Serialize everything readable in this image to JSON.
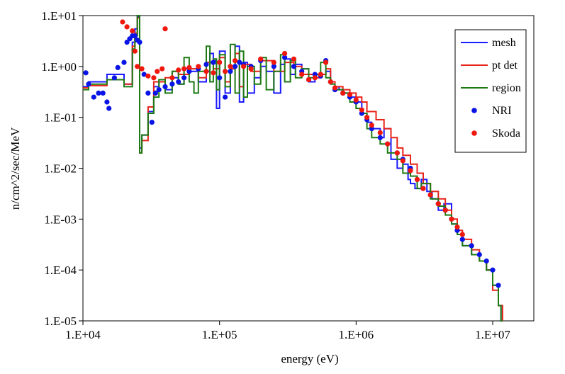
{
  "chart_data": {
    "type": "line",
    "title": "",
    "xlabel": "energy (eV)",
    "ylabel": "n/cm^2/sec/MeV",
    "xscale": "log",
    "yscale": "log",
    "xlim": [
      10000,
      20000000
    ],
    "ylim": [
      1e-05,
      10
    ],
    "x_ticks": [
      {
        "value": 10000,
        "label": "1.E+04"
      },
      {
        "value": 100000,
        "label": "1.E+05"
      },
      {
        "value": 1000000,
        "label": "1.E+06"
      },
      {
        "value": 10000000,
        "label": "1.E+07"
      }
    ],
    "y_ticks": [
      {
        "value": 10,
        "label": "1.E+01"
      },
      {
        "value": 1,
        "label": "1.E+00"
      },
      {
        "value": 0.1,
        "label": "1.E-01"
      },
      {
        "value": 0.01,
        "label": "1.E-02"
      },
      {
        "value": 0.001,
        "label": "1.E-03"
      },
      {
        "value": 0.0001,
        "label": "1.E-04"
      },
      {
        "value": 1e-05,
        "label": "1.E-05"
      }
    ],
    "legend_position": "top-right",
    "series": [
      {
        "name": "mesh",
        "style": "step",
        "color": "#1a1aff",
        "x": [
          10000,
          11000,
          15000,
          20000,
          23000,
          24000,
          25000,
          26000,
          27000,
          30000,
          33000,
          36000,
          40000,
          45000,
          50000,
          55000,
          60000,
          70000,
          80000,
          85000,
          90000,
          95000,
          100000,
          110000,
          120000,
          130000,
          140000,
          150000,
          160000,
          180000,
          200000,
          220000,
          250000,
          280000,
          300000,
          330000,
          360000,
          400000,
          450000,
          500000,
          550000,
          600000,
          650000,
          700000,
          750000,
          800000,
          900000,
          1000000,
          1100000,
          1200000,
          1300000,
          1500000,
          1600000,
          1800000,
          2000000,
          2200000,
          2400000,
          2500000,
          2700000,
          3000000,
          3300000,
          3600000,
          4000000,
          4400000,
          5000000,
          5500000,
          6000000,
          7000000,
          8000000,
          9000000,
          10000000,
          11000000,
          11500000,
          11800000
        ],
        "y": [
          0.4,
          0.5,
          0.7,
          0.45,
          3.0,
          5.5,
          9.5,
          0.025,
          0.045,
          0.13,
          0.4,
          0.5,
          0.35,
          0.6,
          0.45,
          0.9,
          0.8,
          0.5,
          0.8,
          1.8,
          1.3,
          0.15,
          2.0,
          0.3,
          0.9,
          2.5,
          0.2,
          1.2,
          0.3,
          0.6,
          1.0,
          0.8,
          0.3,
          1.1,
          1.4,
          0.7,
          1.1,
          0.9,
          0.5,
          0.6,
          0.7,
          0.8,
          0.5,
          0.4,
          0.35,
          0.3,
          0.25,
          0.2,
          0.12,
          0.08,
          0.06,
          0.04,
          0.06,
          0.015,
          0.01,
          0.012,
          0.006,
          0.005,
          0.004,
          0.006,
          0.0035,
          0.0025,
          0.0015,
          0.002,
          0.0008,
          0.0005,
          0.0003,
          0.0002,
          0.00015,
          0.0001,
          5e-05,
          2e-05,
          1e-05,
          1e-05
        ]
      },
      {
        "name": "pt det",
        "style": "step",
        "color": "#e8231a",
        "x": [
          10000,
          11000,
          15000,
          20000,
          23000,
          24000,
          25000,
          26000,
          27000,
          30000,
          33000,
          36000,
          40000,
          45000,
          50000,
          60000,
          70000,
          80000,
          90000,
          100000,
          110000,
          120000,
          130000,
          140000,
          150000,
          170000,
          200000,
          250000,
          300000,
          350000,
          400000,
          450000,
          500000,
          550000,
          600000,
          650000,
          700000,
          800000,
          900000,
          1000000,
          1100000,
          1200000,
          1400000,
          1600000,
          1800000,
          2000000,
          2200000,
          2500000,
          2800000,
          3100000,
          3500000,
          4000000,
          4500000,
          5000000,
          5500000,
          6000000,
          7000000,
          8000000,
          9000000,
          10000000,
          11000000,
          11800000
        ],
        "y": [
          0.38,
          0.42,
          0.55,
          0.45,
          2.5,
          4.5,
          9.0,
          0.02,
          0.035,
          0.16,
          0.5,
          0.5,
          0.6,
          0.8,
          0.7,
          0.9,
          0.6,
          1.2,
          0.9,
          1.5,
          0.5,
          0.9,
          1.8,
          0.4,
          1.1,
          0.8,
          1.3,
          0.8,
          1.2,
          1.0,
          0.7,
          0.7,
          0.6,
          0.7,
          0.9,
          0.5,
          0.4,
          0.35,
          0.3,
          0.25,
          0.2,
          0.13,
          0.09,
          0.06,
          0.04,
          0.025,
          0.018,
          0.012,
          0.008,
          0.005,
          0.0035,
          0.0025,
          0.0015,
          0.001,
          0.0006,
          0.0004,
          0.00025,
          0.00015,
          0.0001,
          4e-05,
          2e-05,
          1e-05
        ]
      },
      {
        "name": "region",
        "style": "step",
        "color": "#1d7a12",
        "x": [
          10000,
          11000,
          15000,
          20000,
          23000,
          24000,
          25000,
          26000,
          27000,
          30000,
          33000,
          36000,
          40000,
          45000,
          50000,
          55000,
          60000,
          65000,
          70000,
          80000,
          85000,
          90000,
          95000,
          100000,
          110000,
          120000,
          130000,
          140000,
          150000,
          160000,
          180000,
          200000,
          220000,
          250000,
          280000,
          300000,
          330000,
          360000,
          400000,
          450000,
          500000,
          550000,
          600000,
          650000,
          700000,
          800000,
          900000,
          1000000,
          1100000,
          1200000,
          1300000,
          1500000,
          1700000,
          2000000,
          2200000,
          2500000,
          2800000,
          3000000,
          3500000,
          4000000,
          4500000,
          5000000,
          5500000,
          6000000,
          7000000,
          8000000,
          9000000,
          10000000,
          11000000,
          11500000,
          11800000
        ],
        "y": [
          0.35,
          0.45,
          0.55,
          0.4,
          2.2,
          4.0,
          10.0,
          0.02,
          0.045,
          0.12,
          0.25,
          0.55,
          0.3,
          0.8,
          0.45,
          1.5,
          0.5,
          0.3,
          0.8,
          2.5,
          0.5,
          1.4,
          0.35,
          1.7,
          0.4,
          2.7,
          0.3,
          2.0,
          0.25,
          1.0,
          0.45,
          1.5,
          0.35,
          0.8,
          1.7,
          0.5,
          1.3,
          0.6,
          0.9,
          0.6,
          0.7,
          1.2,
          0.6,
          0.45,
          0.35,
          0.3,
          0.2,
          0.15,
          0.12,
          0.06,
          0.04,
          0.03,
          0.02,
          0.015,
          0.008,
          0.007,
          0.004,
          0.005,
          0.0025,
          0.0018,
          0.0012,
          0.0008,
          0.0005,
          0.0003,
          0.0002,
          0.00015,
          0.0001,
          5e-05,
          2e-05,
          1e-05,
          1e-05
        ]
      },
      {
        "name": "NRI",
        "style": "scatter",
        "color": "#0a14e6",
        "x": [
          10500,
          11000,
          12000,
          13000,
          14000,
          15000,
          15500,
          17000,
          18000,
          20000,
          21000,
          22000,
          23000,
          24000,
          25000,
          26000,
          28000,
          30000,
          32000,
          34000,
          36000,
          40000,
          45000,
          50000,
          55000,
          60000,
          70000,
          80000,
          90000,
          100000,
          110000,
          120000,
          130000,
          140000,
          150000,
          170000,
          200000,
          250000,
          300000,
          350000,
          400000,
          450000,
          500000,
          550000,
          600000,
          650000,
          700000,
          800000,
          900000,
          1000000,
          1100000,
          1200000,
          1300000,
          1500000,
          1700000,
          2000000,
          2200000,
          2500000,
          2800000,
          3100000,
          3500000,
          4000000,
          4500000,
          5000000,
          5500000,
          6000000,
          7000000,
          8000000,
          9000000,
          10000000,
          11000000
        ],
        "y": [
          0.75,
          0.45,
          0.25,
          0.3,
          0.3,
          0.2,
          0.15,
          0.6,
          0.95,
          1.2,
          3.0,
          3.5,
          4.0,
          4.0,
          3.3,
          3.0,
          0.7,
          0.3,
          0.08,
          0.3,
          0.35,
          0.4,
          0.45,
          0.5,
          0.6,
          0.8,
          0.9,
          1.1,
          1.2,
          0.6,
          0.25,
          0.8,
          1.0,
          1.2,
          1.1,
          1.0,
          1.3,
          1.0,
          1.5,
          1.0,
          0.8,
          0.55,
          0.7,
          0.65,
          1.3,
          0.5,
          0.35,
          0.3,
          0.25,
          0.2,
          0.12,
          0.09,
          0.06,
          0.04,
          0.03,
          0.02,
          0.015,
          0.01,
          0.006,
          0.004,
          0.003,
          0.002,
          0.0015,
          0.001,
          0.0006,
          0.0004,
          0.0003,
          0.0002,
          0.00015,
          0.0001,
          5e-05
        ]
      },
      {
        "name": "Skoda",
        "style": "scatter",
        "color": "#f0170d",
        "x": [
          19500,
          21000,
          23000,
          24000,
          25000,
          27000,
          30000,
          33000,
          35000,
          38000,
          40000,
          45000,
          50000,
          55000,
          60000,
          70000,
          80000,
          90000,
          100000,
          110000,
          120000,
          130000,
          150000,
          170000,
          200000,
          250000,
          300000,
          350000,
          400000,
          450000,
          500000,
          550000,
          600000,
          650000,
          700000,
          800000,
          900000,
          1000000,
          1100000,
          1200000,
          1300000,
          1500000,
          1700000,
          2000000,
          2200000,
          2500000,
          2800000,
          3100000,
          3500000,
          4000000,
          4500000,
          5000000,
          5500000,
          6000000
        ],
        "y": [
          7.5,
          6.0,
          5.0,
          2.0,
          1.0,
          0.9,
          0.65,
          0.6,
          0.8,
          0.9,
          5.5,
          0.6,
          0.85,
          0.9,
          0.95,
          1.0,
          0.8,
          0.75,
          1.2,
          0.8,
          1.0,
          1.3,
          1.0,
          0.9,
          1.4,
          1.2,
          1.8,
          1.4,
          0.7,
          0.55,
          0.6,
          0.7,
          1.2,
          0.5,
          0.38,
          0.3,
          0.28,
          0.22,
          0.14,
          0.1,
          0.07,
          0.05,
          0.03,
          0.02,
          0.014,
          0.009,
          0.006,
          0.004,
          0.003,
          0.002,
          0.0015,
          0.001,
          0.0007,
          0.0005
        ]
      }
    ]
  }
}
